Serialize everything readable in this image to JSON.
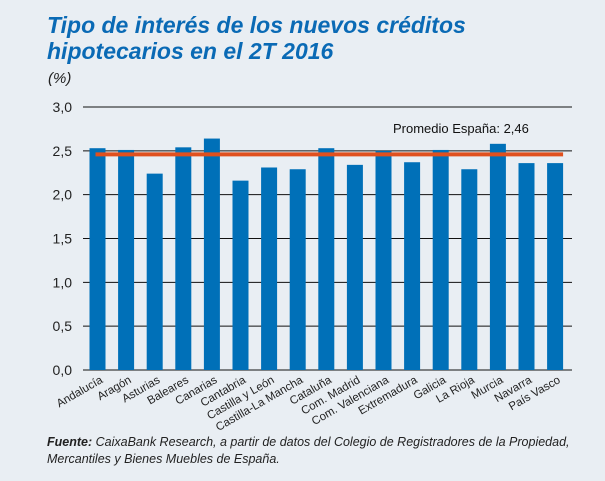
{
  "title": "Tipo de interés de los nuevos créditos hipotecarios en el 2T 2016",
  "source": {
    "label": "Fuente:",
    "text": " CaixaBank Research, a partir de datos del Colegio de Registradores de la Propiedad, Mercantiles y Bienes Muebles de España."
  },
  "colors": {
    "bar": "#0070b8",
    "average_line": "#e0501e",
    "title": "#0a6ab5",
    "background": "#e9eef3"
  },
  "chart_data": {
    "type": "bar",
    "title": "Tipo de interés de los nuevos créditos hipotecarios en el 2T 2016",
    "ylabel": "(%)",
    "ylim": [
      0,
      3.0
    ],
    "yticks": [
      "0,0",
      "0,5",
      "1,0",
      "1,5",
      "2,0",
      "2,5",
      "3,0"
    ],
    "grid": true,
    "categories": [
      "Andalucía",
      "Aragón",
      "Asturias",
      "Baleares",
      "Canarias",
      "Cantabria",
      "Castilla y León",
      "Castilla-La Mancha",
      "Cataluña",
      "Com. Madrid",
      "Com. Valenciana",
      "Extremadura",
      "Galicia",
      "La Rioja",
      "Murcia",
      "Navarra",
      "País Vasco"
    ],
    "values": [
      2.53,
      2.51,
      2.24,
      2.54,
      2.64,
      2.16,
      2.31,
      2.29,
      2.53,
      2.34,
      2.5,
      2.37,
      2.51,
      2.29,
      2.58,
      2.36,
      2.36
    ],
    "reference_line": {
      "value": 2.46,
      "label": "Promedio España: 2,46"
    }
  }
}
